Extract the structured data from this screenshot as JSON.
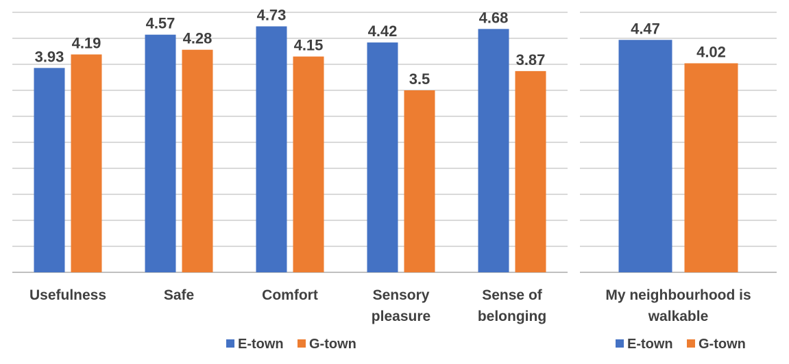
{
  "chart_data": [
    {
      "type": "bar",
      "categories": [
        [
          "Usefulness"
        ],
        [
          "Safe"
        ],
        [
          "Comfort"
        ],
        [
          "Sensory",
          "pleasure"
        ],
        [
          "Sense of",
          "belonging"
        ]
      ],
      "series": [
        {
          "name": "E-town",
          "color": "#4472c4",
          "values": [
            3.93,
            4.57,
            4.73,
            4.42,
            4.68
          ],
          "labels": [
            "3.93",
            "4.57",
            "4.73",
            "4.42",
            "4.68"
          ]
        },
        {
          "name": "G-town",
          "color": "#ed7d31",
          "values": [
            4.19,
            4.28,
            4.15,
            3.5,
            3.87
          ],
          "labels": [
            "4.19",
            "4.28",
            "4.15",
            "3.5",
            "3.87"
          ]
        }
      ],
      "ylim": [
        0,
        5
      ],
      "grid": true,
      "legend": "bottom-center"
    },
    {
      "type": "bar",
      "categories": [
        [
          "My neighbourhood is",
          "walkable"
        ]
      ],
      "series": [
        {
          "name": "E-town",
          "color": "#4472c4",
          "values": [
            4.47
          ],
          "labels": [
            "4.47"
          ]
        },
        {
          "name": "G-town",
          "color": "#ed7d31",
          "values": [
            4.02
          ],
          "labels": [
            "4.02"
          ]
        }
      ],
      "ylim": [
        0,
        5
      ],
      "grid": true,
      "legend": "bottom-center"
    }
  ]
}
